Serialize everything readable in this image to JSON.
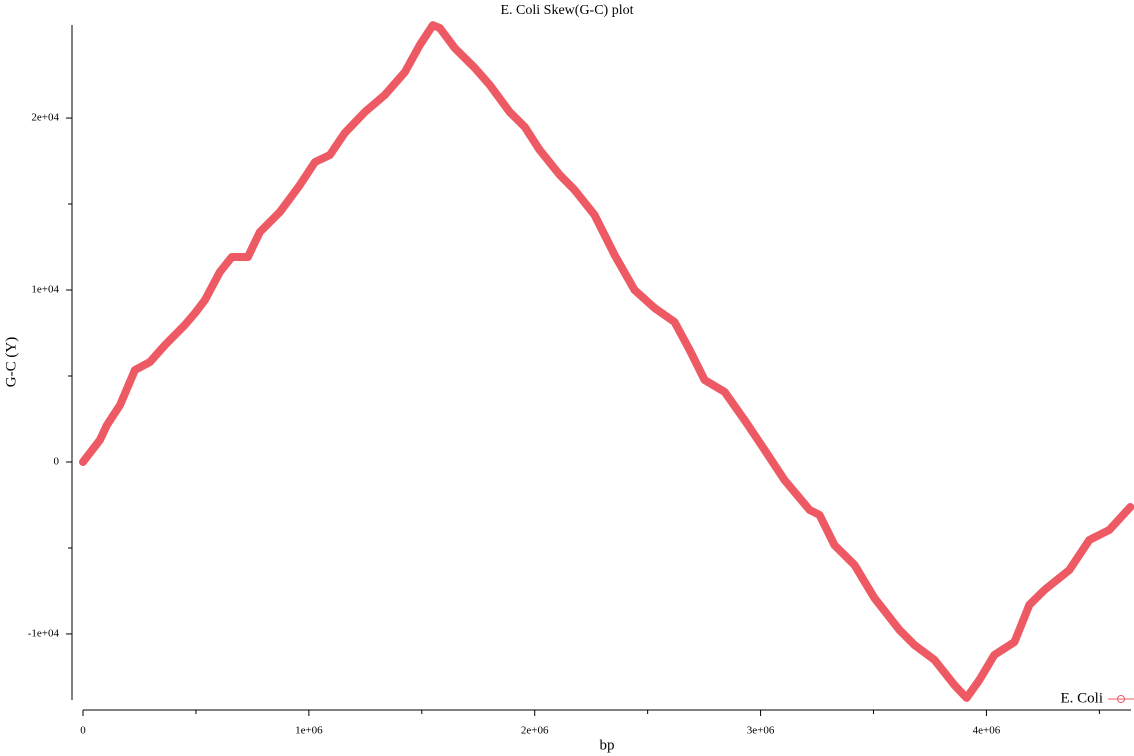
{
  "chart_data": {
    "type": "line",
    "title": "E. Coli Skew(G-C) plot",
    "x_label": "bp",
    "y_label": "G-C (Y)",
    "x": [
      0,
      75000,
      106000,
      164000,
      230000,
      296000,
      363000,
      451000,
      496000,
      540000,
      606000,
      659000,
      730000,
      783000,
      872000,
      960000,
      1027000,
      1093000,
      1159000,
      1248000,
      1336000,
      1425000,
      1491000,
      1549000,
      1580000,
      1646000,
      1735000,
      1801000,
      1889000,
      1956000,
      2022000,
      2111000,
      2177000,
      2265000,
      2354000,
      2442000,
      2531000,
      2619000,
      2686000,
      2752000,
      2841000,
      2929000,
      3018000,
      3106000,
      3217000,
      3261000,
      3327000,
      3416000,
      3504000,
      3615000,
      3681000,
      3770000,
      3858000,
      3912000,
      3969000,
      4035000,
      4124000,
      4190000,
      4257000,
      4367000,
      4456000,
      4544000,
      4637000
    ],
    "series": [
      {
        "name": "E. Coli",
        "color": "#ee5a64",
        "values": [
          0,
          1280,
          2150,
          3310,
          5350,
          5810,
          6800,
          7970,
          8660,
          9420,
          11050,
          11920,
          11920,
          13370,
          14540,
          16100,
          17440,
          17850,
          19130,
          20350,
          21340,
          22670,
          24240,
          25400,
          25230,
          24070,
          22910,
          21920,
          20350,
          19480,
          18140,
          16690,
          15810,
          14360,
          12030,
          10000,
          8950,
          8140,
          6510,
          4770,
          4070,
          2440,
          700,
          -1050,
          -2790,
          -3080,
          -4830,
          -5990,
          -7910,
          -9770,
          -10640,
          -11510,
          -12970,
          -13720,
          -12670,
          -11220,
          -10470,
          -8310,
          -7440,
          -6280,
          -4530,
          -3950,
          -2620
        ]
      }
    ],
    "xlim": [
      0,
      4640000
    ],
    "ylim": [
      -13840,
      25410
    ],
    "xticks": [
      0,
      {
        "value": 1000000,
        "label": "1e+06"
      },
      {
        "value": 2000000,
        "label": "2e+06"
      },
      {
        "value": 3000000,
        "label": "3e+06"
      },
      {
        "value": 4000000,
        "label": "4e+06"
      }
    ],
    "xminorticks": [
      500000,
      1500000,
      2500000,
      3500000,
      4500000
    ],
    "yticks": [
      {
        "value": -10000,
        "label": "-1e+04"
      },
      0,
      {
        "value": 10000,
        "label": "1e+04"
      },
      {
        "value": 20000,
        "label": "2e+04"
      }
    ],
    "yminorticks": [
      -5000,
      5000,
      15000
    ],
    "legend": "bottom-right"
  }
}
